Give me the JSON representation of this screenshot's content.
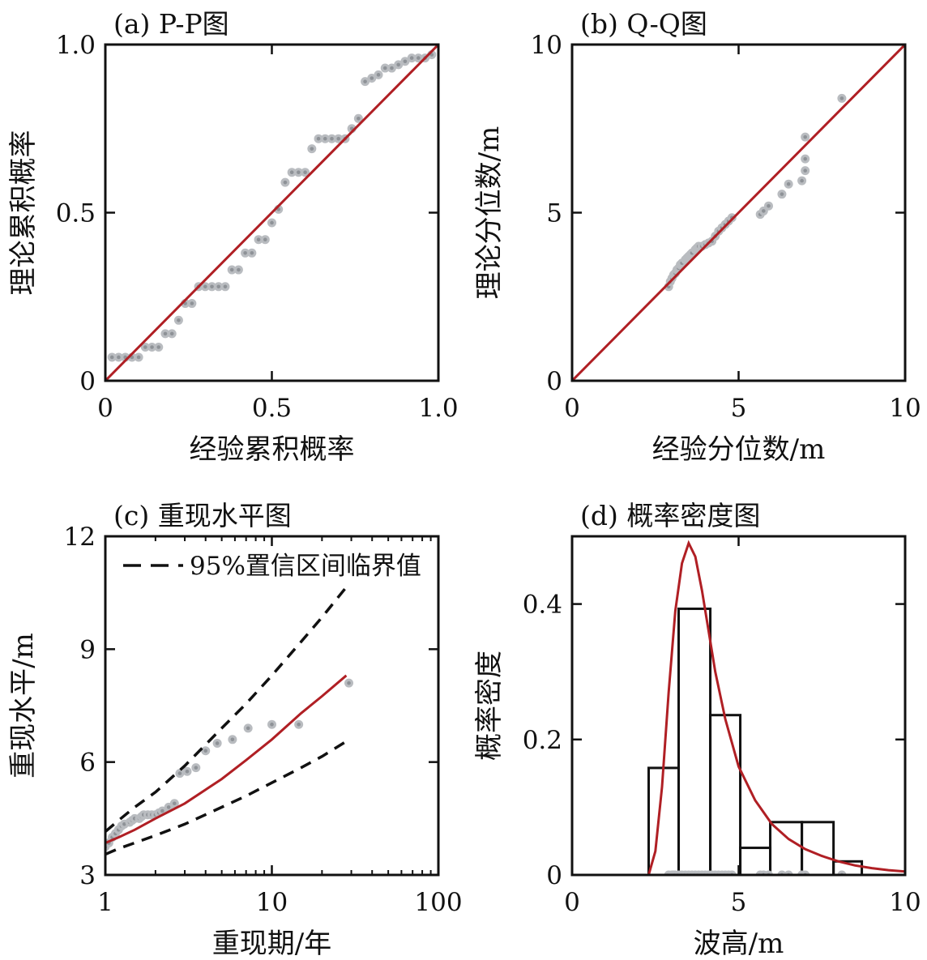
{
  "chart_data": [
    {
      "type": "scatter",
      "title": "(a) P-P图",
      "xlabel": "经验累积概率",
      "ylabel": "理论累积概率",
      "xlim": [
        0,
        1
      ],
      "ylim": [
        0,
        1
      ],
      "xticks": [
        {
          "v": 0,
          "label": "0"
        },
        {
          "v": 0.5,
          "label": "0.5"
        },
        {
          "v": 1,
          "label": "1.0"
        }
      ],
      "yticks": [
        {
          "v": 0,
          "label": "0"
        },
        {
          "v": 0.5,
          "label": "0.5"
        },
        {
          "v": 1,
          "label": "1.0"
        }
      ],
      "points": {
        "x": [
          0.02,
          0.04,
          0.06,
          0.08,
          0.1,
          0.12,
          0.14,
          0.16,
          0.18,
          0.2,
          0.22,
          0.24,
          0.26,
          0.28,
          0.3,
          0.32,
          0.34,
          0.36,
          0.38,
          0.4,
          0.42,
          0.44,
          0.46,
          0.48,
          0.5,
          0.52,
          0.54,
          0.56,
          0.58,
          0.6,
          0.62,
          0.64,
          0.66,
          0.68,
          0.7,
          0.72,
          0.74,
          0.76,
          0.78,
          0.8,
          0.82,
          0.84,
          0.86,
          0.88,
          0.9,
          0.92,
          0.94,
          0.96,
          0.98
        ],
        "y": [
          0.07,
          0.07,
          0.07,
          0.07,
          0.07,
          0.1,
          0.1,
          0.1,
          0.14,
          0.14,
          0.18,
          0.23,
          0.23,
          0.28,
          0.28,
          0.28,
          0.28,
          0.28,
          0.33,
          0.33,
          0.38,
          0.38,
          0.42,
          0.42,
          0.47,
          0.51,
          0.59,
          0.62,
          0.62,
          0.62,
          0.69,
          0.72,
          0.72,
          0.72,
          0.72,
          0.72,
          0.75,
          0.78,
          0.89,
          0.9,
          0.91,
          0.93,
          0.93,
          0.94,
          0.95,
          0.96,
          0.96,
          0.96,
          0.97
        ]
      },
      "line": {
        "x": [
          0,
          1
        ],
        "y": [
          0,
          1
        ]
      },
      "colors": {
        "points": "#b9bcc0",
        "point_center": "#8e9297",
        "line": "#b01f24"
      }
    },
    {
      "type": "scatter",
      "title": "(b) Q-Q图",
      "xlabel": "经验分位数/m",
      "ylabel": "理论分位数/m",
      "xlim": [
        0,
        10
      ],
      "ylim": [
        0,
        10
      ],
      "xticks": [
        {
          "v": 0,
          "label": "0"
        },
        {
          "v": 5,
          "label": "5"
        },
        {
          "v": 10,
          "label": "10"
        }
      ],
      "yticks": [
        {
          "v": 0,
          "label": "0"
        },
        {
          "v": 5,
          "label": "5"
        },
        {
          "v": 10,
          "label": "10"
        }
      ],
      "points": {
        "x": [
          2.9,
          2.95,
          3.0,
          3.05,
          3.1,
          3.15,
          3.2,
          3.25,
          3.3,
          3.4,
          3.45,
          3.5,
          3.55,
          3.6,
          3.7,
          3.75,
          3.8,
          3.9,
          4.0,
          4.1,
          4.2,
          4.3,
          4.4,
          4.5,
          4.6,
          4.7,
          4.8,
          5.65,
          5.75,
          5.9,
          6.3,
          6.5,
          6.9,
          7.0,
          7.0,
          7.0,
          8.1
        ],
        "y": [
          2.8,
          2.95,
          3.05,
          3.15,
          3.2,
          3.3,
          3.35,
          3.45,
          3.5,
          3.6,
          3.65,
          3.7,
          3.75,
          3.8,
          3.9,
          3.95,
          4.0,
          4.0,
          4.05,
          4.1,
          4.15,
          4.3,
          4.45,
          4.55,
          4.65,
          4.75,
          4.85,
          4.95,
          5.05,
          5.2,
          5.55,
          5.85,
          5.95,
          6.25,
          6.6,
          7.25,
          8.4
        ]
      },
      "line": {
        "x": [
          0,
          10
        ],
        "y": [
          0,
          10
        ]
      },
      "colors": {
        "points": "#b9bcc0",
        "point_center": "#8e9297",
        "line": "#b01f24"
      }
    },
    {
      "type": "line",
      "title": "(c) 重现水平图",
      "xlabel": "重现期/年",
      "ylabel": "重现水平/m",
      "xscale": "log",
      "xlim": [
        1,
        100
      ],
      "ylim": [
        3,
        12
      ],
      "xticks": [
        {
          "v": 1,
          "label": "1"
        },
        {
          "v": 10,
          "label": "10"
        },
        {
          "v": 100,
          "label": "100"
        }
      ],
      "yticks": [
        {
          "v": 3,
          "label": "3"
        },
        {
          "v": 6,
          "label": "6"
        },
        {
          "v": 9,
          "label": "9"
        },
        {
          "v": 12,
          "label": "12"
        }
      ],
      "legend": {
        "label": "95%置信区间临界值",
        "position": "top-right"
      },
      "series": [
        {
          "role": "fit",
          "x": [
            1,
            1.2,
            1.5,
            2,
            3,
            5,
            7,
            10,
            15,
            20,
            28
          ],
          "y": [
            3.85,
            4.0,
            4.2,
            4.5,
            4.9,
            5.55,
            6.05,
            6.6,
            7.3,
            7.75,
            8.3
          ]
        },
        {
          "name": "95%置信区间临界值",
          "role": "upper",
          "x": [
            1,
            1.2,
            1.5,
            2,
            3,
            5,
            7,
            10,
            15,
            20,
            28
          ],
          "y": [
            4.15,
            4.45,
            4.8,
            5.2,
            5.9,
            6.9,
            7.55,
            8.3,
            9.2,
            9.85,
            10.65
          ]
        },
        {
          "name": "95%置信区间临界值",
          "role": "lower",
          "x": [
            1,
            1.2,
            1.5,
            2,
            3,
            5,
            7,
            10,
            15,
            20,
            28
          ],
          "y": [
            3.55,
            3.7,
            3.85,
            4.05,
            4.35,
            4.8,
            5.1,
            5.45,
            5.85,
            6.15,
            6.55
          ]
        }
      ],
      "points": {
        "x": [
          1.0,
          1.05,
          1.1,
          1.15,
          1.2,
          1.25,
          1.3,
          1.4,
          1.45,
          1.5,
          1.6,
          1.65,
          1.7,
          1.8,
          1.9,
          2.0,
          2.1,
          2.2,
          2.4,
          2.6,
          2.8,
          3.1,
          3.5,
          4.0,
          4.7,
          5.8,
          7.2,
          10.0,
          14.5,
          29.0
        ],
        "y": [
          3.75,
          3.85,
          4.0,
          4.1,
          4.2,
          4.3,
          4.35,
          4.4,
          4.45,
          4.5,
          4.5,
          4.55,
          4.6,
          4.6,
          4.6,
          4.6,
          4.65,
          4.7,
          4.8,
          4.9,
          5.7,
          5.75,
          5.85,
          6.3,
          6.5,
          6.6,
          6.9,
          7.0,
          7.0,
          8.1
        ]
      },
      "colors": {
        "points": "#b9bcc0",
        "point_center": "#8e9297",
        "line": "#b01f24",
        "ci": "#111111"
      }
    },
    {
      "type": "bar",
      "title": "(d) 概率密度图",
      "xlabel": "波高/m",
      "ylabel": "概率密度",
      "xlim": [
        0,
        10
      ],
      "ylim": [
        0,
        0.5
      ],
      "xticks": [
        {
          "v": 0,
          "label": "0"
        },
        {
          "v": 5,
          "label": "5"
        },
        {
          "v": 10,
          "label": "10"
        }
      ],
      "yticks": [
        {
          "v": 0,
          "label": "0"
        },
        {
          "v": 0.2,
          "label": "0.2"
        },
        {
          "v": 0.4,
          "label": "0.4"
        }
      ],
      "bins": [
        {
          "x0": 2.3,
          "x1": 3.2,
          "h": 0.158
        },
        {
          "x0": 3.2,
          "x1": 4.15,
          "h": 0.393
        },
        {
          "x0": 4.15,
          "x1": 5.05,
          "h": 0.236
        },
        {
          "x0": 5.05,
          "x1": 5.95,
          "h": 0.04
        },
        {
          "x0": 5.95,
          "x1": 6.9,
          "h": 0.078
        },
        {
          "x0": 6.9,
          "x1": 7.85,
          "h": 0.078
        },
        {
          "x0": 7.85,
          "x1": 8.7,
          "h": 0.02
        }
      ],
      "pdf": {
        "x": [
          2.3,
          2.5,
          2.7,
          2.9,
          3.1,
          3.3,
          3.5,
          3.7,
          3.9,
          4.1,
          4.3,
          4.6,
          5.0,
          5.5,
          6.0,
          6.5,
          7.0,
          7.5,
          8.0,
          8.5,
          9.0,
          9.5,
          10.0
        ],
        "y": [
          0.0,
          0.035,
          0.13,
          0.27,
          0.39,
          0.46,
          0.49,
          0.47,
          0.42,
          0.36,
          0.3,
          0.23,
          0.16,
          0.11,
          0.075,
          0.053,
          0.038,
          0.028,
          0.02,
          0.014,
          0.01,
          0.007,
          0.005
        ]
      },
      "rug": [
        2.9,
        3.0,
        3.05,
        3.1,
        3.2,
        3.3,
        3.4,
        3.5,
        3.6,
        3.7,
        3.8,
        3.9,
        4.0,
        4.1,
        4.2,
        4.3,
        4.4,
        4.5,
        4.6,
        4.7,
        4.8,
        5.65,
        5.75,
        5.9,
        6.3,
        6.5,
        6.9,
        7.0,
        8.1
      ],
      "colors": {
        "points": "#b9bcc0",
        "point_center": "#8e9297",
        "line": "#b01f24",
        "bar": "#111111"
      }
    }
  ]
}
